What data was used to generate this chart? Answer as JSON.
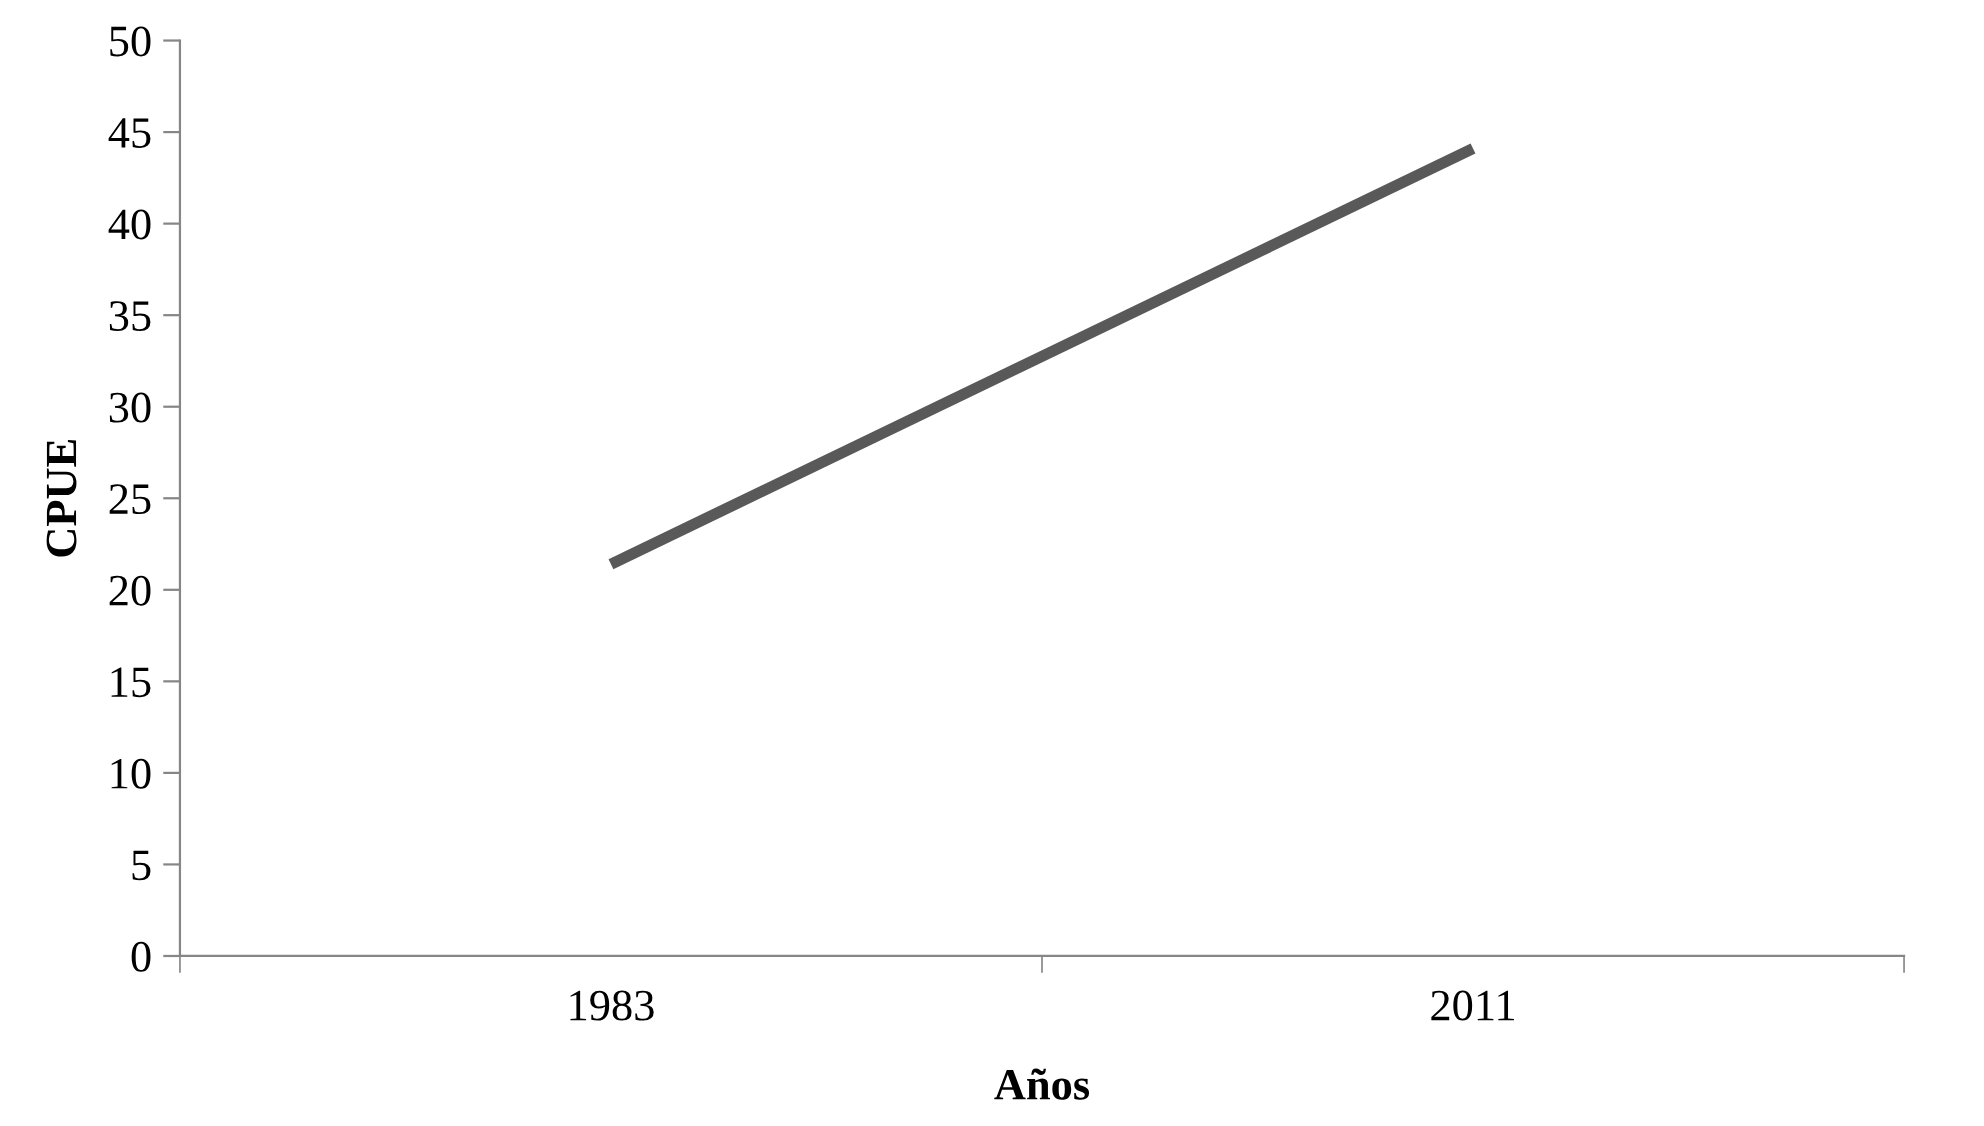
{
  "chart_data": {
    "type": "line",
    "xlabel": "Años",
    "ylabel": "CPUE",
    "categories": [
      "1983",
      "2011"
    ],
    "series": [
      {
        "color": "#595959",
        "values": [
          21.4,
          44.1
        ]
      }
    ],
    "ylim": [
      0,
      50
    ],
    "yticks": [
      0,
      5,
      10,
      15,
      20,
      25,
      30,
      35,
      40,
      45,
      50
    ],
    "grid": false,
    "legend": false,
    "marker": "none",
    "line_style": "solid"
  }
}
